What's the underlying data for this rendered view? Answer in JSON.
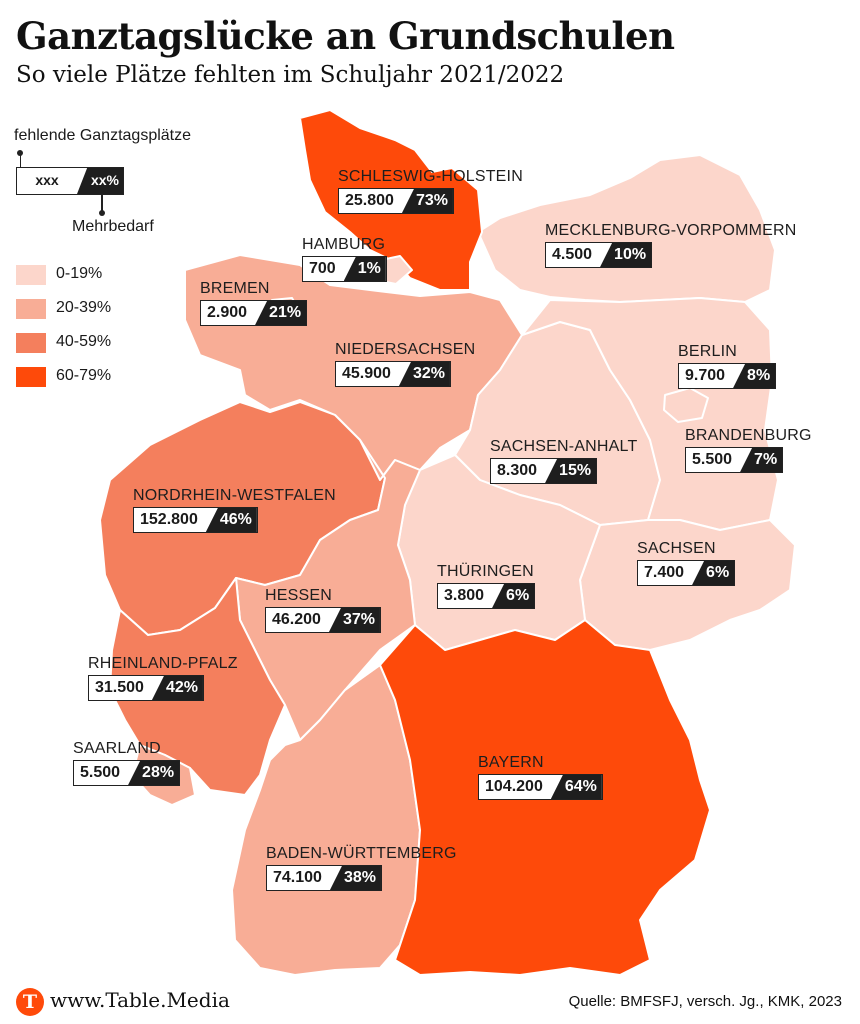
{
  "title": "Ganztagslücke an Grundschulen",
  "subtitle": "So viele Plätze fehlten im Schuljahr 2021/2022",
  "legend": {
    "missing_label": "fehlende Ganztagsplätze",
    "sample_number": "xxx",
    "sample_percent": "xx%",
    "extra_label": "Mehrbedarf",
    "scale": [
      {
        "label": "0-19%",
        "color": "#fcd6cb"
      },
      {
        "label": "20-39%",
        "color": "#f8ad96"
      },
      {
        "label": "40-59%",
        "color": "#f47f5d"
      },
      {
        "label": "60-79%",
        "color": "#fe4a0a"
      }
    ]
  },
  "states": [
    {
      "id": "sh",
      "name": "SCHLESWIG-HOLSTEIN",
      "missing": "25.800",
      "extra": "73%",
      "extra_value": 73
    },
    {
      "id": "hh",
      "name": "HAMBURG",
      "missing": "700",
      "extra": "1%",
      "extra_value": 1
    },
    {
      "id": "hb",
      "name": "BREMEN",
      "missing": "2.900",
      "extra": "21%",
      "extra_value": 21
    },
    {
      "id": "mv",
      "name": "MECKLENBURG-VORPOMMERN",
      "missing": "4.500",
      "extra": "10%",
      "extra_value": 10
    },
    {
      "id": "ni",
      "name": "NIEDERSACHSEN",
      "missing": "45.900",
      "extra": "32%",
      "extra_value": 32
    },
    {
      "id": "be",
      "name": "BERLIN",
      "missing": "9.700",
      "extra": "8%",
      "extra_value": 8
    },
    {
      "id": "bb",
      "name": "BRANDENBURG",
      "missing": "5.500",
      "extra": "7%",
      "extra_value": 7
    },
    {
      "id": "st",
      "name": "SACHSEN-ANHALT",
      "missing": "8.300",
      "extra": "15%",
      "extra_value": 15
    },
    {
      "id": "nw",
      "name": "NORDRHEIN-WESTFALEN",
      "missing": "152.800",
      "extra": "46%",
      "extra_value": 46
    },
    {
      "id": "sn",
      "name": "SACHSEN",
      "missing": "7.400",
      "extra": "6%",
      "extra_value": 6
    },
    {
      "id": "th",
      "name": "THÜRINGEN",
      "missing": "3.800",
      "extra": "6%",
      "extra_value": 6
    },
    {
      "id": "he",
      "name": "HESSEN",
      "missing": "46.200",
      "extra": "37%",
      "extra_value": 37
    },
    {
      "id": "rp",
      "name": "RHEINLAND-PFALZ",
      "missing": "31.500",
      "extra": "42%",
      "extra_value": 42
    },
    {
      "id": "sl",
      "name": "SAARLAND",
      "missing": "5.500",
      "extra": "28%",
      "extra_value": 28
    },
    {
      "id": "by",
      "name": "BAYERN",
      "missing": "104.200",
      "extra": "64%",
      "extra_value": 64
    },
    {
      "id": "bw",
      "name": "BADEN-WÜRTTEMBERG",
      "missing": "74.100",
      "extra": "38%",
      "extra_value": 38
    }
  ],
  "footer": {
    "logo_letter": "T",
    "site": "www.Table.Media",
    "source": "Quelle: BMFSFJ, versch. Jg., KMK, 2023"
  }
}
